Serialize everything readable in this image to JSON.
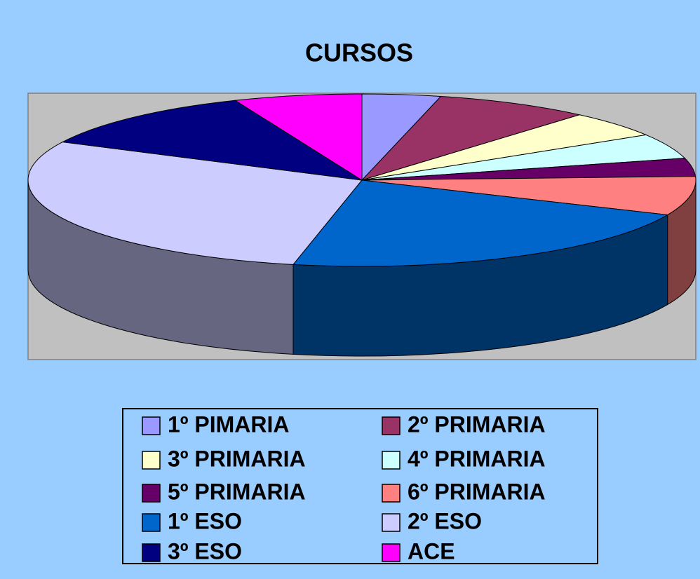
{
  "chart_data": {
    "type": "pie3d",
    "title": "CURSOS",
    "categories": [
      "1º PIMARIA",
      "2º PRIMARIA",
      "3º PRIMARIA",
      "4º PRIMARIA",
      "5º PRIMARIA",
      "6º PRIMARIA",
      "1º ESO",
      "2º ESO",
      "3º ESO",
      "ACE"
    ],
    "values": [
      3.8,
      7.5,
      4.9,
      4.7,
      3.4,
      7.3,
      21.7,
      29,
      11.5,
      6.2
    ],
    "colors": [
      "#9999ff",
      "#993366",
      "#ffffcc",
      "#ccffff",
      "#660066",
      "#ff8080",
      "#0066cc",
      "#ccccff",
      "#000080",
      "#ff00ff"
    ],
    "legend": "bottom"
  }
}
